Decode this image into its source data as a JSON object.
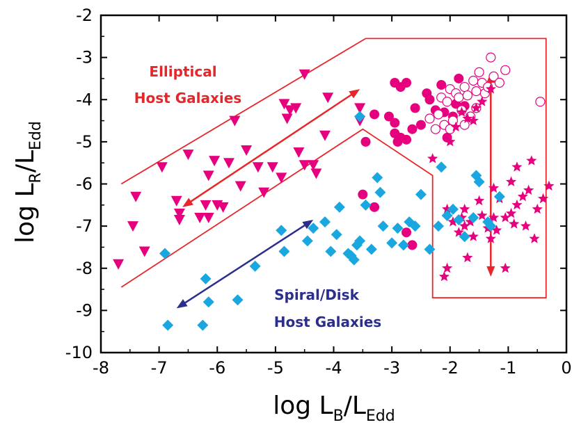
{
  "chart_data": {
    "type": "scatter",
    "xlabel": {
      "base": "log L",
      "sub1": "B",
      "slash": "/L",
      "sub2": "Edd"
    },
    "ylabel": {
      "base": "log L",
      "sub1": "R",
      "slash": "/L",
      "sub2": "Edd"
    },
    "xlim": [
      -8,
      0
    ],
    "ylim": [
      -10,
      -2
    ],
    "x_ticks": [
      "-8",
      "-7",
      "-6",
      "-5",
      "-4",
      "-3",
      "-2",
      "-1",
      "0"
    ],
    "y_ticks": [
      "-2",
      "-3",
      "-4",
      "-5",
      "-6",
      "-7",
      "-8",
      "-9",
      "-10"
    ],
    "grid": false,
    "colors": {
      "magenta": "#e6007e",
      "cyan": "#1aa7e0",
      "red": "#e8262a",
      "navy": "#2b2e8c"
    },
    "annotations": {
      "elliptical_line1": "Elliptical",
      "elliptical_line2": "Host Galaxies",
      "spiral_line1": "Spiral/Disk",
      "spiral_line2": "Host Galaxies"
    },
    "series": [
      {
        "marker": "triangle-down",
        "color": "#e6007e",
        "points": [
          [
            -7.7,
            -7.9
          ],
          [
            -7.4,
            -6.3
          ],
          [
            -7.45,
            -7.0
          ],
          [
            -7.25,
            -7.6
          ],
          [
            -6.95,
            -5.6
          ],
          [
            -6.7,
            -6.4
          ],
          [
            -6.65,
            -6.7
          ],
          [
            -6.65,
            -6.85
          ],
          [
            -6.5,
            -5.3
          ],
          [
            -6.3,
            -6.8
          ],
          [
            -6.2,
            -6.5
          ],
          [
            -6.15,
            -6.8
          ],
          [
            -6.05,
            -5.45
          ],
          [
            -6.15,
            -5.8
          ],
          [
            -6.0,
            -6.5
          ],
          [
            -5.9,
            -6.55
          ],
          [
            -5.7,
            -4.5
          ],
          [
            -5.8,
            -5.5
          ],
          [
            -5.6,
            -6.05
          ],
          [
            -5.5,
            -5.2
          ],
          [
            -5.3,
            -5.6
          ],
          [
            -5.2,
            -6.2
          ],
          [
            -5.05,
            -5.6
          ],
          [
            -4.9,
            -5.85
          ],
          [
            -4.85,
            -4.1
          ],
          [
            -4.8,
            -4.45
          ],
          [
            -4.75,
            -4.25
          ],
          [
            -4.65,
            -4.2
          ],
          [
            -4.6,
            -5.25
          ],
          [
            -4.5,
            -5.55
          ],
          [
            -4.35,
            -5.55
          ],
          [
            -4.3,
            -5.75
          ],
          [
            -4.15,
            -4.85
          ],
          [
            -4.1,
            -3.95
          ],
          [
            -3.55,
            -4.2
          ],
          [
            -3.55,
            -4.5
          ],
          [
            -4.5,
            -3.4
          ]
        ]
      },
      {
        "marker": "circle",
        "color": "#e6007e",
        "points": [
          [
            -3.45,
            -5.0
          ],
          [
            -3.05,
            -4.4
          ],
          [
            -2.95,
            -4.8
          ],
          [
            -2.9,
            -5.0
          ],
          [
            -2.85,
            -4.9
          ],
          [
            -2.75,
            -3.6
          ],
          [
            -2.75,
            -4.95
          ],
          [
            -2.65,
            -4.7
          ],
          [
            -2.6,
            -4.2
          ],
          [
            -2.5,
            -4.6
          ],
          [
            -2.4,
            -3.85
          ],
          [
            -2.35,
            -4.0
          ],
          [
            -2.25,
            -4.25
          ],
          [
            -2.15,
            -3.65
          ],
          [
            -2.1,
            -4.3
          ],
          [
            -2.05,
            -4.9
          ],
          [
            -1.95,
            -4.4
          ],
          [
            -1.9,
            -4.1
          ],
          [
            -1.85,
            -3.5
          ],
          [
            -1.75,
            -4.15
          ],
          [
            -2.95,
            -3.6
          ],
          [
            -2.85,
            -3.7
          ],
          [
            -3.3,
            -4.35
          ],
          [
            -3.5,
            -6.25
          ],
          [
            -3.3,
            -6.55
          ],
          [
            -2.75,
            -7.15
          ],
          [
            -2.65,
            -7.45
          ],
          [
            -2.95,
            -4.55
          ]
        ]
      },
      {
        "marker": "circle-open",
        "color": "#e6007e",
        "points": [
          [
            -2.35,
            -4.45
          ],
          [
            -2.25,
            -4.7
          ],
          [
            -2.2,
            -4.35
          ],
          [
            -2.15,
            -3.95
          ],
          [
            -2.1,
            -4.6
          ],
          [
            -2.05,
            -4.05
          ],
          [
            -2.0,
            -3.75
          ],
          [
            -1.95,
            -4.5
          ],
          [
            -1.9,
            -3.85
          ],
          [
            -1.85,
            -3.95
          ],
          [
            -1.8,
            -4.25
          ],
          [
            -1.75,
            -3.7
          ],
          [
            -1.7,
            -3.9
          ],
          [
            -1.65,
            -4.4
          ],
          [
            -1.6,
            -3.55
          ],
          [
            -1.55,
            -3.8
          ],
          [
            -1.5,
            -3.35
          ],
          [
            -1.45,
            -3.6
          ],
          [
            -1.4,
            -3.85
          ],
          [
            -1.3,
            -3.0
          ],
          [
            -1.25,
            -3.45
          ],
          [
            -1.15,
            -3.6
          ],
          [
            -1.05,
            -3.3
          ],
          [
            -0.45,
            -4.05
          ],
          [
            -1.75,
            -4.6
          ],
          [
            -2.0,
            -4.7
          ],
          [
            -1.35,
            -3.7
          ],
          [
            -1.55,
            -4.2
          ]
        ]
      },
      {
        "marker": "star",
        "color": "#e6007e",
        "points": [
          [
            -2.3,
            -5.4
          ],
          [
            -2.0,
            -5.0
          ],
          [
            -1.9,
            -4.65
          ],
          [
            -1.8,
            -4.3
          ],
          [
            -1.7,
            -4.45
          ],
          [
            -1.6,
            -4.5
          ],
          [
            -1.55,
            -4.2
          ],
          [
            -1.45,
            -4.05
          ],
          [
            -1.3,
            -3.75
          ],
          [
            -2.05,
            -6.6
          ],
          [
            -1.95,
            -6.9
          ],
          [
            -1.85,
            -7.15
          ],
          [
            -1.8,
            -6.8
          ],
          [
            -1.75,
            -6.6
          ],
          [
            -1.65,
            -6.9
          ],
          [
            -1.6,
            -7.25
          ],
          [
            -1.5,
            -6.4
          ],
          [
            -1.45,
            -6.75
          ],
          [
            -1.35,
            -7.05
          ],
          [
            -1.3,
            -7.3
          ],
          [
            -1.25,
            -6.8
          ],
          [
            -1.2,
            -7.1
          ],
          [
            -1.15,
            -6.35
          ],
          [
            -1.05,
            -6.8
          ],
          [
            -0.95,
            -5.95
          ],
          [
            -0.9,
            -6.95
          ],
          [
            -0.85,
            -6.5
          ],
          [
            -0.75,
            -6.3
          ],
          [
            -0.7,
            -7.0
          ],
          [
            -0.65,
            -6.15
          ],
          [
            -0.6,
            -5.45
          ],
          [
            -0.55,
            -7.3
          ],
          [
            -0.5,
            -6.6
          ],
          [
            -0.4,
            -6.35
          ],
          [
            -0.3,
            -6.05
          ],
          [
            -2.05,
            -8.0
          ],
          [
            -2.1,
            -8.2
          ],
          [
            -1.7,
            -7.75
          ],
          [
            -1.05,
            -8.0
          ],
          [
            -1.25,
            -6.1
          ],
          [
            -0.85,
            -5.6
          ],
          [
            -0.95,
            -6.7
          ],
          [
            -1.75,
            -7.0
          ]
        ]
      },
      {
        "marker": "diamond",
        "color": "#1aa7e0",
        "points": [
          [
            -6.85,
            -9.35
          ],
          [
            -6.9,
            -7.65
          ],
          [
            -6.25,
            -9.35
          ],
          [
            -6.2,
            -8.25
          ],
          [
            -6.15,
            -8.8
          ],
          [
            -5.65,
            -8.75
          ],
          [
            -5.35,
            -7.95
          ],
          [
            -4.9,
            -7.1
          ],
          [
            -4.85,
            -7.6
          ],
          [
            -4.45,
            -7.35
          ],
          [
            -4.35,
            -7.05
          ],
          [
            -4.15,
            -6.9
          ],
          [
            -4.05,
            -7.6
          ],
          [
            -3.95,
            -7.2
          ],
          [
            -3.9,
            -6.55
          ],
          [
            -3.75,
            -7.65
          ],
          [
            -3.7,
            -7.7
          ],
          [
            -3.65,
            -7.8
          ],
          [
            -3.6,
            -7.45
          ],
          [
            -3.55,
            -7.35
          ],
          [
            -3.45,
            -6.5
          ],
          [
            -3.35,
            -7.55
          ],
          [
            -3.25,
            -5.85
          ],
          [
            -3.2,
            -6.2
          ],
          [
            -3.15,
            -7.0
          ],
          [
            -3.0,
            -7.4
          ],
          [
            -2.9,
            -7.05
          ],
          [
            -2.8,
            -7.45
          ],
          [
            -2.7,
            -6.9
          ],
          [
            -2.6,
            -7.0
          ],
          [
            -2.5,
            -6.25
          ],
          [
            -2.35,
            -7.55
          ],
          [
            -2.2,
            -7.0
          ],
          [
            -2.15,
            -5.6
          ],
          [
            -2.05,
            -6.75
          ],
          [
            -1.95,
            -6.6
          ],
          [
            -1.85,
            -6.85
          ],
          [
            -1.75,
            -7.25
          ],
          [
            -1.6,
            -6.8
          ],
          [
            -1.55,
            -5.8
          ],
          [
            -1.5,
            -5.95
          ],
          [
            -1.35,
            -6.9
          ],
          [
            -1.3,
            -7.0
          ],
          [
            -1.15,
            -6.3
          ],
          [
            -3.55,
            -4.4
          ]
        ]
      }
    ],
    "arrows": [
      {
        "color": "#e8262a",
        "from": [
          -6.6,
          -6.55
        ],
        "to": [
          -3.55,
          -3.75
        ]
      },
      {
        "color": "#2b2e8c",
        "from": [
          -6.7,
          -8.95
        ],
        "to": [
          -4.35,
          -6.85
        ]
      },
      {
        "color": "#e8262a",
        "from": [
          -1.3,
          -3.35
        ],
        "to": [
          -1.3,
          -8.2
        ]
      }
    ],
    "regions": [
      {
        "color": "#e8262a",
        "closed": false,
        "points": [
          [
            -7.65,
            -6.0
          ],
          [
            -3.45,
            -2.55
          ]
        ]
      },
      {
        "color": "#e8262a",
        "closed": false,
        "points": [
          [
            -3.45,
            -2.55
          ],
          [
            -0.35,
            -2.55
          ],
          [
            -0.35,
            -8.7
          ],
          [
            -2.3,
            -8.7
          ],
          [
            -2.3,
            -5.8
          ],
          [
            -3.5,
            -4.7
          ],
          [
            -7.65,
            -8.45
          ]
        ]
      }
    ]
  }
}
